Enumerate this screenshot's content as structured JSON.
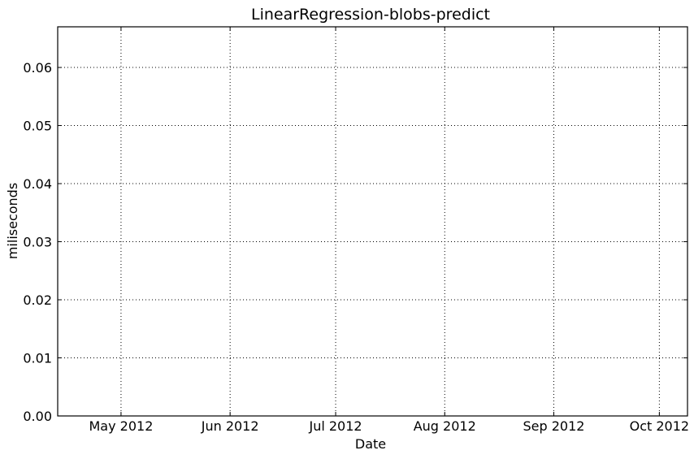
{
  "chart_data": {
    "type": "line",
    "title": "LinearRegression-blobs-predict",
    "xlabel": "Date",
    "ylabel": "miliseconds",
    "x_axis_type": "date",
    "xlim": [
      "2012-04-13",
      "2012-10-09"
    ],
    "ylim": [
      0,
      0.067
    ],
    "x_ticks": [
      {
        "date": "2012-05-01",
        "label": "May 2012"
      },
      {
        "date": "2012-06-01",
        "label": "Jun 2012"
      },
      {
        "date": "2012-07-01",
        "label": "Jul 2012"
      },
      {
        "date": "2012-08-01",
        "label": "Aug 2012"
      },
      {
        "date": "2012-09-01",
        "label": "Sep 2012"
      },
      {
        "date": "2012-10-01",
        "label": "Oct 2012"
      }
    ],
    "y_ticks": [
      {
        "value": 0.0,
        "label": "0.00"
      },
      {
        "value": 0.01,
        "label": "0.01"
      },
      {
        "value": 0.02,
        "label": "0.02"
      },
      {
        "value": 0.03,
        "label": "0.03"
      },
      {
        "value": 0.04,
        "label": "0.04"
      },
      {
        "value": 0.05,
        "label": "0.05"
      },
      {
        "value": 0.06,
        "label": "0.06"
      }
    ],
    "grid": true,
    "grid_style": "dotted",
    "series": []
  }
}
